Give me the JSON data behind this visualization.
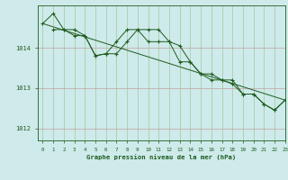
{
  "title": "Graphe pression niveau de la mer (hPa)",
  "xlim": [
    -0.5,
    23
  ],
  "ylim": [
    1011.7,
    1015.05
  ],
  "yticks": [
    1012,
    1013,
    1014
  ],
  "xticks": [
    0,
    1,
    2,
    3,
    4,
    5,
    6,
    7,
    8,
    9,
    10,
    11,
    12,
    13,
    14,
    15,
    16,
    17,
    18,
    19,
    20,
    21,
    22,
    23
  ],
  "bg_color": "#ceeaea",
  "line_color": "#1e5c1e",
  "grid_color_v": "#a0c8a0",
  "grid_color_h": "#c0a0a0",
  "series1": {
    "x": [
      0,
      1,
      2,
      3,
      4,
      5,
      6,
      7,
      8,
      9,
      10,
      11,
      12,
      13,
      14,
      15,
      16,
      17,
      18,
      19,
      20,
      21,
      22,
      23
    ],
    "y": [
      1014.6,
      1014.85,
      1014.45,
      1014.45,
      1014.3,
      1013.8,
      1013.85,
      1014.15,
      1014.45,
      1014.45,
      1014.45,
      1014.45,
      1014.15,
      1014.05,
      1013.65,
      1013.35,
      1013.35,
      1013.2,
      1013.2,
      1012.85,
      1012.85,
      1012.6,
      1012.45,
      1012.7
    ]
  },
  "series2": {
    "x": [
      1,
      2,
      3,
      4,
      5,
      6,
      7,
      8,
      9,
      10,
      11,
      12,
      13,
      14,
      15,
      16,
      17,
      18,
      19,
      20,
      21,
      22,
      23
    ],
    "y": [
      1014.45,
      1014.45,
      1014.3,
      1014.3,
      1013.8,
      1013.85,
      1013.85,
      1014.15,
      1014.45,
      1014.15,
      1014.15,
      1014.15,
      1013.65,
      1013.65,
      1013.35,
      1013.2,
      1013.2,
      1013.1,
      1012.85,
      1012.85,
      1012.6,
      1012.45,
      1012.7
    ]
  },
  "trend_x": [
    0,
    23
  ],
  "trend_y": [
    1014.6,
    1012.7
  ]
}
